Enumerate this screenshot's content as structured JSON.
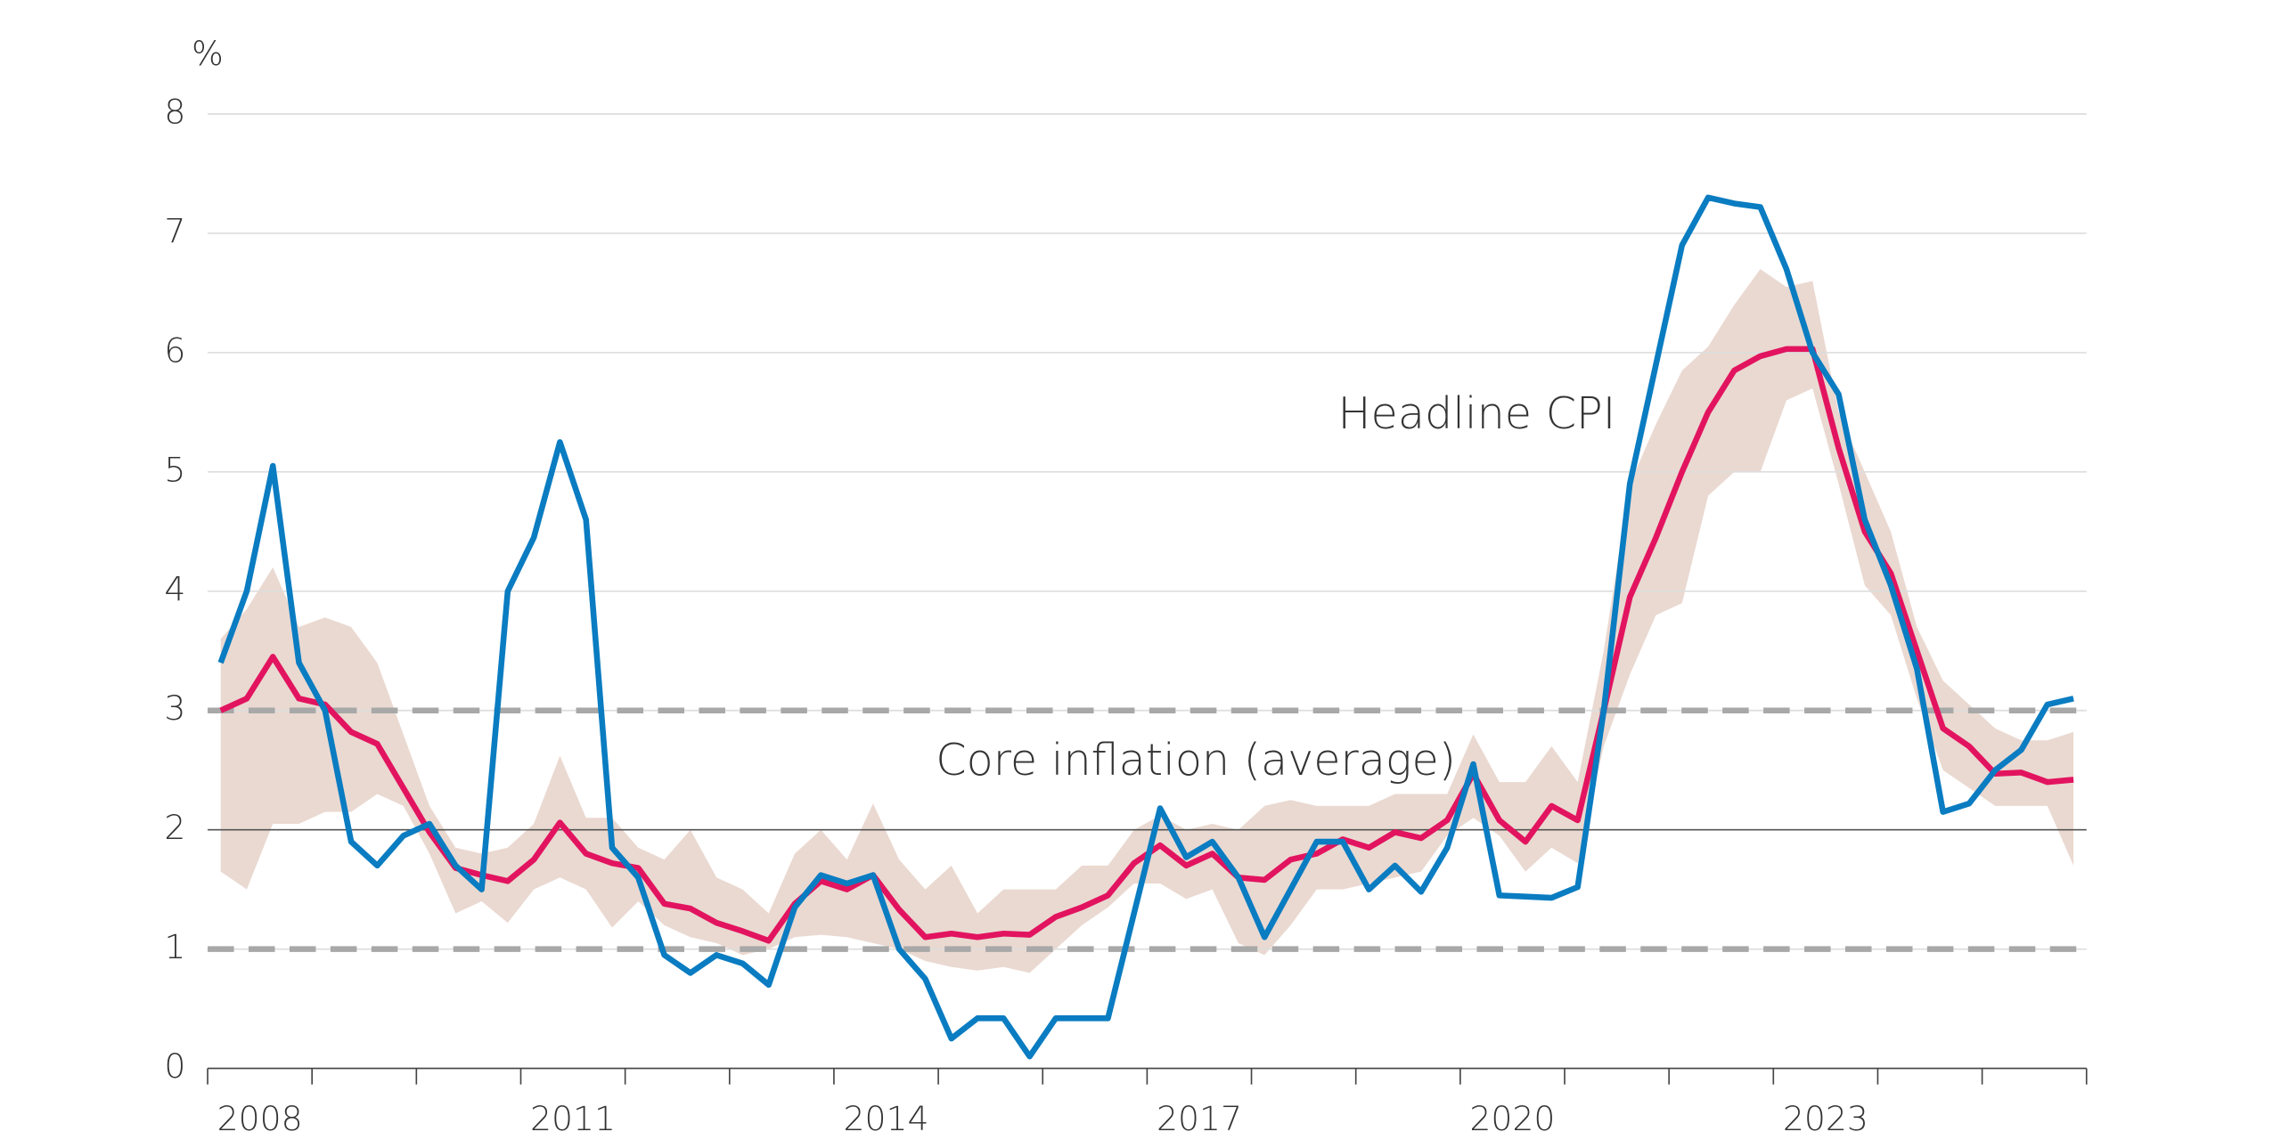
{
  "chart_data": {
    "type": "line",
    "y_unit": "%",
    "x": [
      2008.125,
      2008.375,
      2008.625,
      2008.875,
      2009.125,
      2009.375,
      2009.625,
      2009.875,
      2010.125,
      2010.375,
      2010.625,
      2010.875,
      2011.125,
      2011.375,
      2011.625,
      2011.875,
      2012.125,
      2012.375,
      2012.625,
      2012.875,
      2013.125,
      2013.375,
      2013.625,
      2013.875,
      2014.125,
      2014.375,
      2014.625,
      2014.875,
      2015.125,
      2015.375,
      2015.625,
      2015.875,
      2016.125,
      2016.375,
      2016.625,
      2016.875,
      2017.125,
      2017.375,
      2017.625,
      2017.875,
      2018.125,
      2018.375,
      2018.625,
      2018.875,
      2019.125,
      2019.375,
      2019.625,
      2019.875,
      2020.125,
      2020.375,
      2020.625,
      2020.875,
      2021.125,
      2021.375,
      2021.625,
      2021.875,
      2022.125,
      2022.375,
      2022.625,
      2022.875,
      2023.125,
      2023.375,
      2023.625,
      2023.875,
      2024.125,
      2024.375,
      2024.625,
      2024.875,
      2025.125,
      2025.375,
      2025.625,
      2025.875
    ],
    "band": {
      "color": "#ead9d1",
      "low": [
        1.65,
        1.5,
        2.05,
        2.05,
        2.15,
        2.15,
        2.3,
        2.2,
        1.8,
        1.3,
        1.4,
        1.22,
        1.5,
        1.6,
        1.5,
        1.18,
        1.4,
        1.2,
        1.1,
        1.05,
        0.95,
        1.0,
        1.1,
        1.12,
        1.1,
        1.05,
        1.0,
        0.9,
        0.85,
        0.82,
        0.85,
        0.8,
        1.0,
        1.2,
        1.35,
        1.55,
        1.55,
        1.42,
        1.5,
        1.05,
        0.95,
        1.2,
        1.5,
        1.5,
        1.55,
        1.6,
        1.65,
        1.95,
        2.1,
        1.95,
        1.65,
        1.85,
        1.72,
        2.7,
        3.3,
        3.8,
        3.9,
        4.8,
        5.0,
        5.0,
        5.6,
        5.7,
        4.9,
        4.05,
        3.8,
        3.1,
        2.5,
        2.35,
        2.2,
        2.2,
        2.2,
        1.7
      ],
      "high": [
        3.6,
        3.85,
        4.2,
        3.7,
        3.78,
        3.7,
        3.4,
        2.8,
        2.2,
        1.85,
        1.8,
        1.85,
        2.05,
        2.62,
        2.1,
        2.1,
        1.85,
        1.75,
        2.0,
        1.6,
        1.5,
        1.3,
        1.8,
        2.0,
        1.75,
        2.22,
        1.75,
        1.5,
        1.7,
        1.3,
        1.5,
        1.5,
        1.5,
        1.7,
        1.7,
        2.0,
        2.12,
        2.0,
        2.05,
        2.0,
        2.2,
        2.25,
        2.2,
        2.2,
        2.2,
        2.3,
        2.3,
        2.3,
        2.8,
        2.4,
        2.4,
        2.7,
        2.4,
        3.5,
        4.9,
        5.4,
        5.85,
        6.05,
        6.4,
        6.7,
        6.55,
        6.6,
        5.5,
        5.0,
        4.5,
        3.7,
        3.25,
        3.05,
        2.85,
        2.75,
        2.75,
        2.82
      ]
    },
    "series": [
      {
        "name": "Core inflation (average)",
        "color": "#e2145f",
        "values": [
          3.0,
          3.1,
          3.45,
          3.1,
          3.05,
          2.82,
          2.72,
          2.35,
          1.98,
          1.68,
          1.62,
          1.57,
          1.75,
          2.06,
          1.8,
          1.72,
          1.68,
          1.38,
          1.34,
          1.22,
          1.15,
          1.07,
          1.38,
          1.57,
          1.5,
          1.62,
          1.33,
          1.1,
          1.13,
          1.1,
          1.13,
          1.12,
          1.27,
          1.35,
          1.45,
          1.72,
          1.87,
          1.7,
          1.8,
          1.6,
          1.58,
          1.75,
          1.8,
          1.92,
          1.85,
          1.98,
          1.93,
          2.08,
          2.47,
          2.08,
          1.9,
          2.2,
          2.08,
          3.0,
          3.95,
          4.45,
          5.0,
          5.5,
          5.85,
          5.97,
          6.03,
          6.03,
          5.2,
          4.5,
          4.15,
          3.5,
          2.85,
          2.7,
          2.47,
          2.48,
          2.4,
          2.42
        ]
      },
      {
        "name": "Headline CPI",
        "color": "#0a7cc1",
        "values": [
          3.4,
          4.0,
          5.05,
          3.4,
          3.0,
          1.9,
          1.7,
          1.95,
          2.05,
          1.7,
          1.5,
          4.0,
          4.45,
          5.25,
          4.6,
          1.85,
          1.6,
          0.95,
          0.8,
          0.95,
          0.88,
          0.7,
          1.35,
          1.62,
          1.55,
          1.62,
          1.0,
          0.75,
          0.25,
          0.42,
          0.42,
          0.1,
          0.42,
          0.42,
          0.42,
          1.3,
          2.18,
          1.77,
          1.9,
          1.6,
          1.1,
          1.5,
          1.9,
          1.9,
          1.5,
          1.7,
          1.48,
          1.85,
          2.55,
          1.45,
          1.44,
          1.43,
          1.52,
          3.0,
          4.9,
          5.9,
          6.9,
          7.3,
          7.25,
          7.22,
          6.7,
          6.0,
          5.65,
          4.6,
          4.05,
          3.35,
          2.15,
          2.22,
          2.5,
          2.67,
          3.05,
          3.1
        ]
      }
    ],
    "xlim": [
      2008,
      2026
    ],
    "xticks": [
      2008,
      2009,
      2010,
      2011,
      2012,
      2013,
      2014,
      2015,
      2016,
      2017,
      2018,
      2019,
      2020,
      2021,
      2022,
      2023,
      2024,
      2025,
      2026
    ],
    "xlabels": [
      {
        "value": 2008.5,
        "label": "2008"
      },
      {
        "value": 2011.5,
        "label": "2011"
      },
      {
        "value": 2014.5,
        "label": "2014"
      },
      {
        "value": 2017.5,
        "label": "2017"
      },
      {
        "value": 2020.5,
        "label": "2020"
      },
      {
        "value": 2023.5,
        "label": "2023"
      }
    ],
    "ylim": [
      0,
      8
    ],
    "yticks": [
      0,
      1,
      2,
      3,
      4,
      5,
      6,
      7,
      8
    ],
    "grid": true,
    "reference_lines": [
      {
        "value": 1,
        "style": "dashed"
      },
      {
        "value": 2,
        "style": "solid"
      },
      {
        "value": 3,
        "style": "dashed"
      }
    ]
  }
}
